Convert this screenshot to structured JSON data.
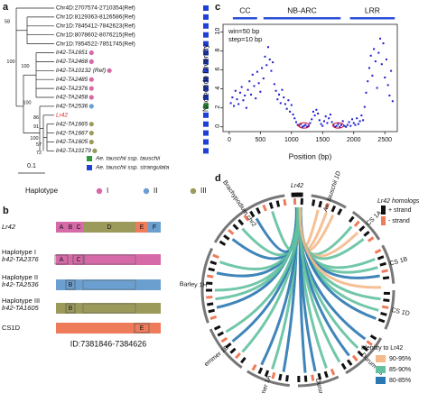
{
  "panels": {
    "a": {
      "label": "a",
      "leaves": [
        {
          "label": "Chr4D:2707574-2710354(Ref)",
          "square_color": "#1f3fd6"
        },
        {
          "label": "Chr1D:8129363-8126586(Ref)",
          "square_color": "#1f3fd6"
        },
        {
          "label": "Chr1D:7845412-7842623(Ref)",
          "square_color": "#1f3fd6"
        },
        {
          "label": "Chr1D:8078602-8076215(Ref)",
          "square_color": "#1f3fd6"
        },
        {
          "label": "Chr1D:7854522-7851745(Ref)",
          "square_color": "#1f3fd6"
        },
        {
          "label": "lr42-TA1651",
          "square_color": "#1f3fd6",
          "circle_color": "#d66aa8"
        },
        {
          "label": "lr42-TA2468",
          "square_color": "#1f3fd6",
          "circle_color": "#d66aa8"
        },
        {
          "label": "lr42-TA10132 (Ref)",
          "square_color": "#1f3fd6",
          "circle_color": "#d66aa8"
        },
        {
          "label": "lr42-TA2485",
          "square_color": "#1f3fd6",
          "circle_color": "#d66aa8"
        },
        {
          "label": "lr42-TA2376",
          "square_color": "#1f3fd6",
          "circle_color": "#d66aa8"
        },
        {
          "label": "lr42-TA2458",
          "square_color": "#1f3fd6",
          "circle_color": "#d66aa8"
        },
        {
          "label": "lr42-TA2536",
          "square_color": "#2e9a3a",
          "circle_color": "#6a9fd0"
        },
        {
          "label": "Lr42",
          "square_color": "#1f3fd6",
          "text_color": "#e0201b"
        },
        {
          "label": "lr42-TA1665",
          "square_color": "#1f3fd6",
          "circle_color": "#9b9a5a"
        },
        {
          "label": "lr42-TA1667",
          "square_color": "#1f3fd6",
          "circle_color": "#9b9a5a"
        },
        {
          "label": "lr42-TA1605",
          "square_color": "#1f3fd6",
          "circle_color": "#9b9a5a"
        },
        {
          "label": "lr42-TA10179",
          "square_color": "#1f3fd6",
          "circle_color": "#9b9a5a"
        }
      ],
      "support": [
        58,
        100,
        100,
        100,
        86,
        91,
        100,
        57,
        72
      ],
      "scale": "0.1",
      "legend": [
        {
          "label": "Ae. tauschii ssp. tauschii",
          "color": "#2e9a3a"
        },
        {
          "label": "Ae. tauschii ssp. strangulata",
          "color": "#1f3fd6"
        }
      ],
      "haplotype": {
        "title": "Haplotype",
        "groups": [
          {
            "label": "I",
            "color": "#d66aa8"
          },
          {
            "label": "II",
            "color": "#6a9fd0"
          },
          {
            "label": "III",
            "color": "#9b9a5a"
          }
        ]
      }
    },
    "b": {
      "label": "b",
      "rows": [
        {
          "name": "Lr42",
          "domains": [
            "A",
            "B",
            "C",
            "D",
            "E",
            "F"
          ]
        },
        {
          "name": "Haplotype I",
          "id": "lr42-TA2376",
          "domains": [
            "A",
            "C"
          ],
          "color": "#d66aa8"
        },
        {
          "name": "Haplotype II",
          "id": "lr42-TA2536",
          "domains": [
            "B"
          ],
          "color": "#6a9fd0"
        },
        {
          "name": "Haplotype III",
          "id": "lr42-TA1605",
          "domains": [
            "B"
          ],
          "color": "#9b9a5a"
        },
        {
          "name": "CS1D",
          "domains": [
            "E"
          ],
          "color": "#ee7b5a"
        }
      ],
      "id": "ID:7381846-7384626"
    },
    "d": {
      "label": "d",
      "segments": [
        "Lr42",
        "Ae. tauschii 1D",
        "CS 1A",
        "CS 1B",
        "CS 1D",
        "Durum 1B",
        "Durum 1A",
        "emmer 1A",
        "emmer 1B",
        "Barley 1H",
        "Brachypodium chr2"
      ],
      "homologs": {
        "title": "Lr42 homologs",
        "items": [
          {
            "label": "+ strand",
            "color": "#111111"
          },
          {
            "label": "- strand",
            "color": "#ee7b5a"
          }
        ]
      },
      "identity": {
        "title": "Identity to Lr42",
        "items": [
          {
            "label": "90-95%",
            "color": "#f5b98a"
          },
          {
            "label": "85-90%",
            "color": "#63c1a0"
          },
          {
            "label": "80-85%",
            "color": "#2a78b3"
          }
        ]
      }
    }
  },
  "chart_data": {
    "type": "scatter",
    "label": "c",
    "xlabel": "Position (bp)",
    "ylabel": "Nucleotide Diversity",
    "color": "#1a1acd",
    "annotations": [
      "win=50 bp",
      "step=10 bp"
    ],
    "domains": [
      {
        "name": "CC",
        "start": 58,
        "end": 448
      },
      {
        "name": "NB-ARC",
        "start": 550,
        "end": 1790
      },
      {
        "name": "LRR",
        "start": 1940,
        "end": 2660
      }
    ],
    "domain_color": "#2b4fd8",
    "xlim": [
      -100,
      2700
    ],
    "ylim": [
      -0.5,
      10.8
    ],
    "xticks": [
      0,
      500,
      1000,
      1500,
      2000,
      2500
    ],
    "yticks": [
      0,
      2,
      4,
      6,
      8,
      10
    ],
    "x": [
      25,
      50,
      75,
      100,
      125,
      150,
      175,
      200,
      225,
      250,
      275,
      300,
      325,
      350,
      375,
      400,
      425,
      450,
      475,
      500,
      525,
      550,
      575,
      600,
      625,
      650,
      675,
      700,
      725,
      750,
      775,
      800,
      825,
      850,
      875,
      900,
      925,
      950,
      975,
      1000,
      1025,
      1050,
      1075,
      1100,
      1125,
      1150,
      1175,
      1200,
      1225,
      1250,
      1275,
      1300,
      1325,
      1350,
      1375,
      1400,
      1425,
      1450,
      1475,
      1500,
      1525,
      1550,
      1575,
      1600,
      1625,
      1650,
      1675,
      1700,
      1725,
      1750,
      1775,
      1800,
      1825,
      1850,
      1875,
      1900,
      1925,
      1950,
      1975,
      2000,
      2025,
      2050,
      2075,
      2100,
      2125,
      2150,
      2175,
      2200,
      2225,
      2250,
      2275,
      2300,
      2325,
      2350,
      2375,
      2400,
      2425,
      2450,
      2475,
      2500,
      2525,
      2550,
      2575,
      2600,
      2625
    ],
    "values": [
      2.5,
      3.1,
      2.2,
      3.8,
      2.9,
      2.4,
      3.6,
      4.2,
      2.8,
      3.3,
      2.0,
      3.9,
      4.8,
      3.4,
      5.5,
      4.3,
      3.0,
      5.8,
      4.6,
      3.7,
      6.2,
      5.1,
      7.4,
      6.5,
      8.4,
      7.1,
      5.9,
      6.8,
      4.5,
      3.8,
      2.9,
      3.4,
      2.5,
      3.9,
      3.1,
      2.4,
      1.9,
      2.8,
      1.6,
      2.3,
      1.3,
      0.9,
      0.5,
      0.2,
      0.1,
      0.3,
      0.0,
      0.1,
      0.2,
      0.0,
      0.1,
      0.4,
      0.8,
      1.6,
      1.2,
      1.8,
      1.4,
      0.7,
      0.3,
      0.1,
      0.6,
      1.1,
      0.4,
      0.9,
      1.3,
      0.5,
      0.2,
      0.0,
      0.1,
      0.3,
      0.0,
      0.2,
      0.6,
      0.1,
      0.0,
      0.2,
      0.5,
      0.1,
      0.8,
      0.4,
      0.2,
      0.9,
      0.3,
      0.6,
      1.2,
      0.7,
      2.1,
      3.6,
      4.8,
      6.2,
      7.5,
      5.4,
      8.2,
      6.9,
      4.1,
      7.8,
      9.3,
      6.6,
      8.8,
      5.2,
      7.1,
      4.4,
      3.3,
      5.9,
      2.7
    ]
  }
}
